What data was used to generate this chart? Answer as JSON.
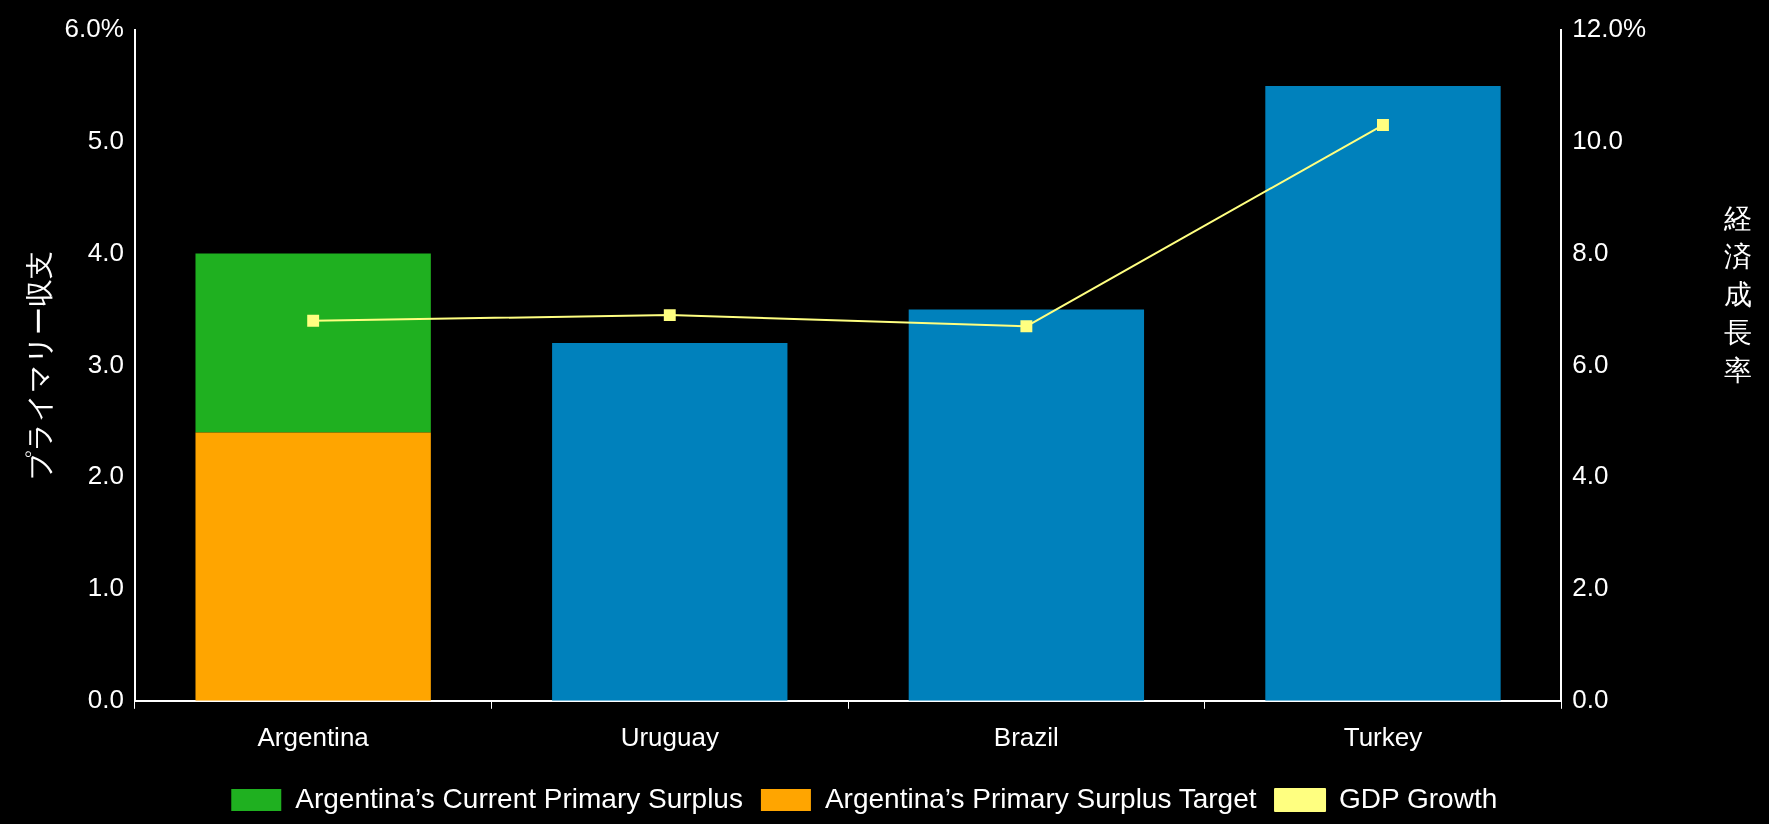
{
  "chart_data": {
    "type": "bar",
    "ylabel": "プライマリー収支",
    "y2label": "経済成長率",
    "categories": [
      "Argentina",
      "Uruguay",
      "Brazil",
      "Turkey"
    ],
    "stacked": true,
    "series": [
      {
        "name": "Argentina’s Primary Surplus Target",
        "color": "#ffa500",
        "values": [
          2.4,
          null,
          null,
          null
        ]
      },
      {
        "name": "Argentina’s Current Primary Surplus",
        "color": "#1fb020",
        "values": [
          1.6,
          null,
          null,
          null
        ]
      },
      {
        "color": "#0081bc",
        "values": [
          null,
          3.2,
          3.5,
          5.5
        ]
      },
      {
        "name": "GDP Growth",
        "type": "line",
        "axis": "y2",
        "color": "#ffff80",
        "values": [
          6.8,
          6.9,
          6.7,
          10.3
        ]
      }
    ],
    "ylim": [
      0,
      6
    ],
    "yticks": [
      {
        "value": 0,
        "label": "0.0"
      },
      {
        "value": 1,
        "label": "1.0"
      },
      {
        "value": 2,
        "label": "2.0"
      },
      {
        "value": 3,
        "label": "3.0"
      },
      {
        "value": 4,
        "label": "4.0"
      },
      {
        "value": 5,
        "label": "5.0"
      },
      {
        "value": 6,
        "label": "6.0%"
      }
    ],
    "y2lim": [
      0,
      12
    ],
    "y2ticks": [
      {
        "value": 0,
        "label": "0.0"
      },
      {
        "value": 2,
        "label": "2.0"
      },
      {
        "value": 4,
        "label": "4.0"
      },
      {
        "value": 6,
        "label": "6.0"
      },
      {
        "value": 8,
        "label": "8.0"
      },
      {
        "value": 10,
        "label": "10.0"
      },
      {
        "value": 12,
        "label": "12.0%"
      }
    ],
    "legend": "bottom",
    "marker": "square",
    "grid": false
  }
}
